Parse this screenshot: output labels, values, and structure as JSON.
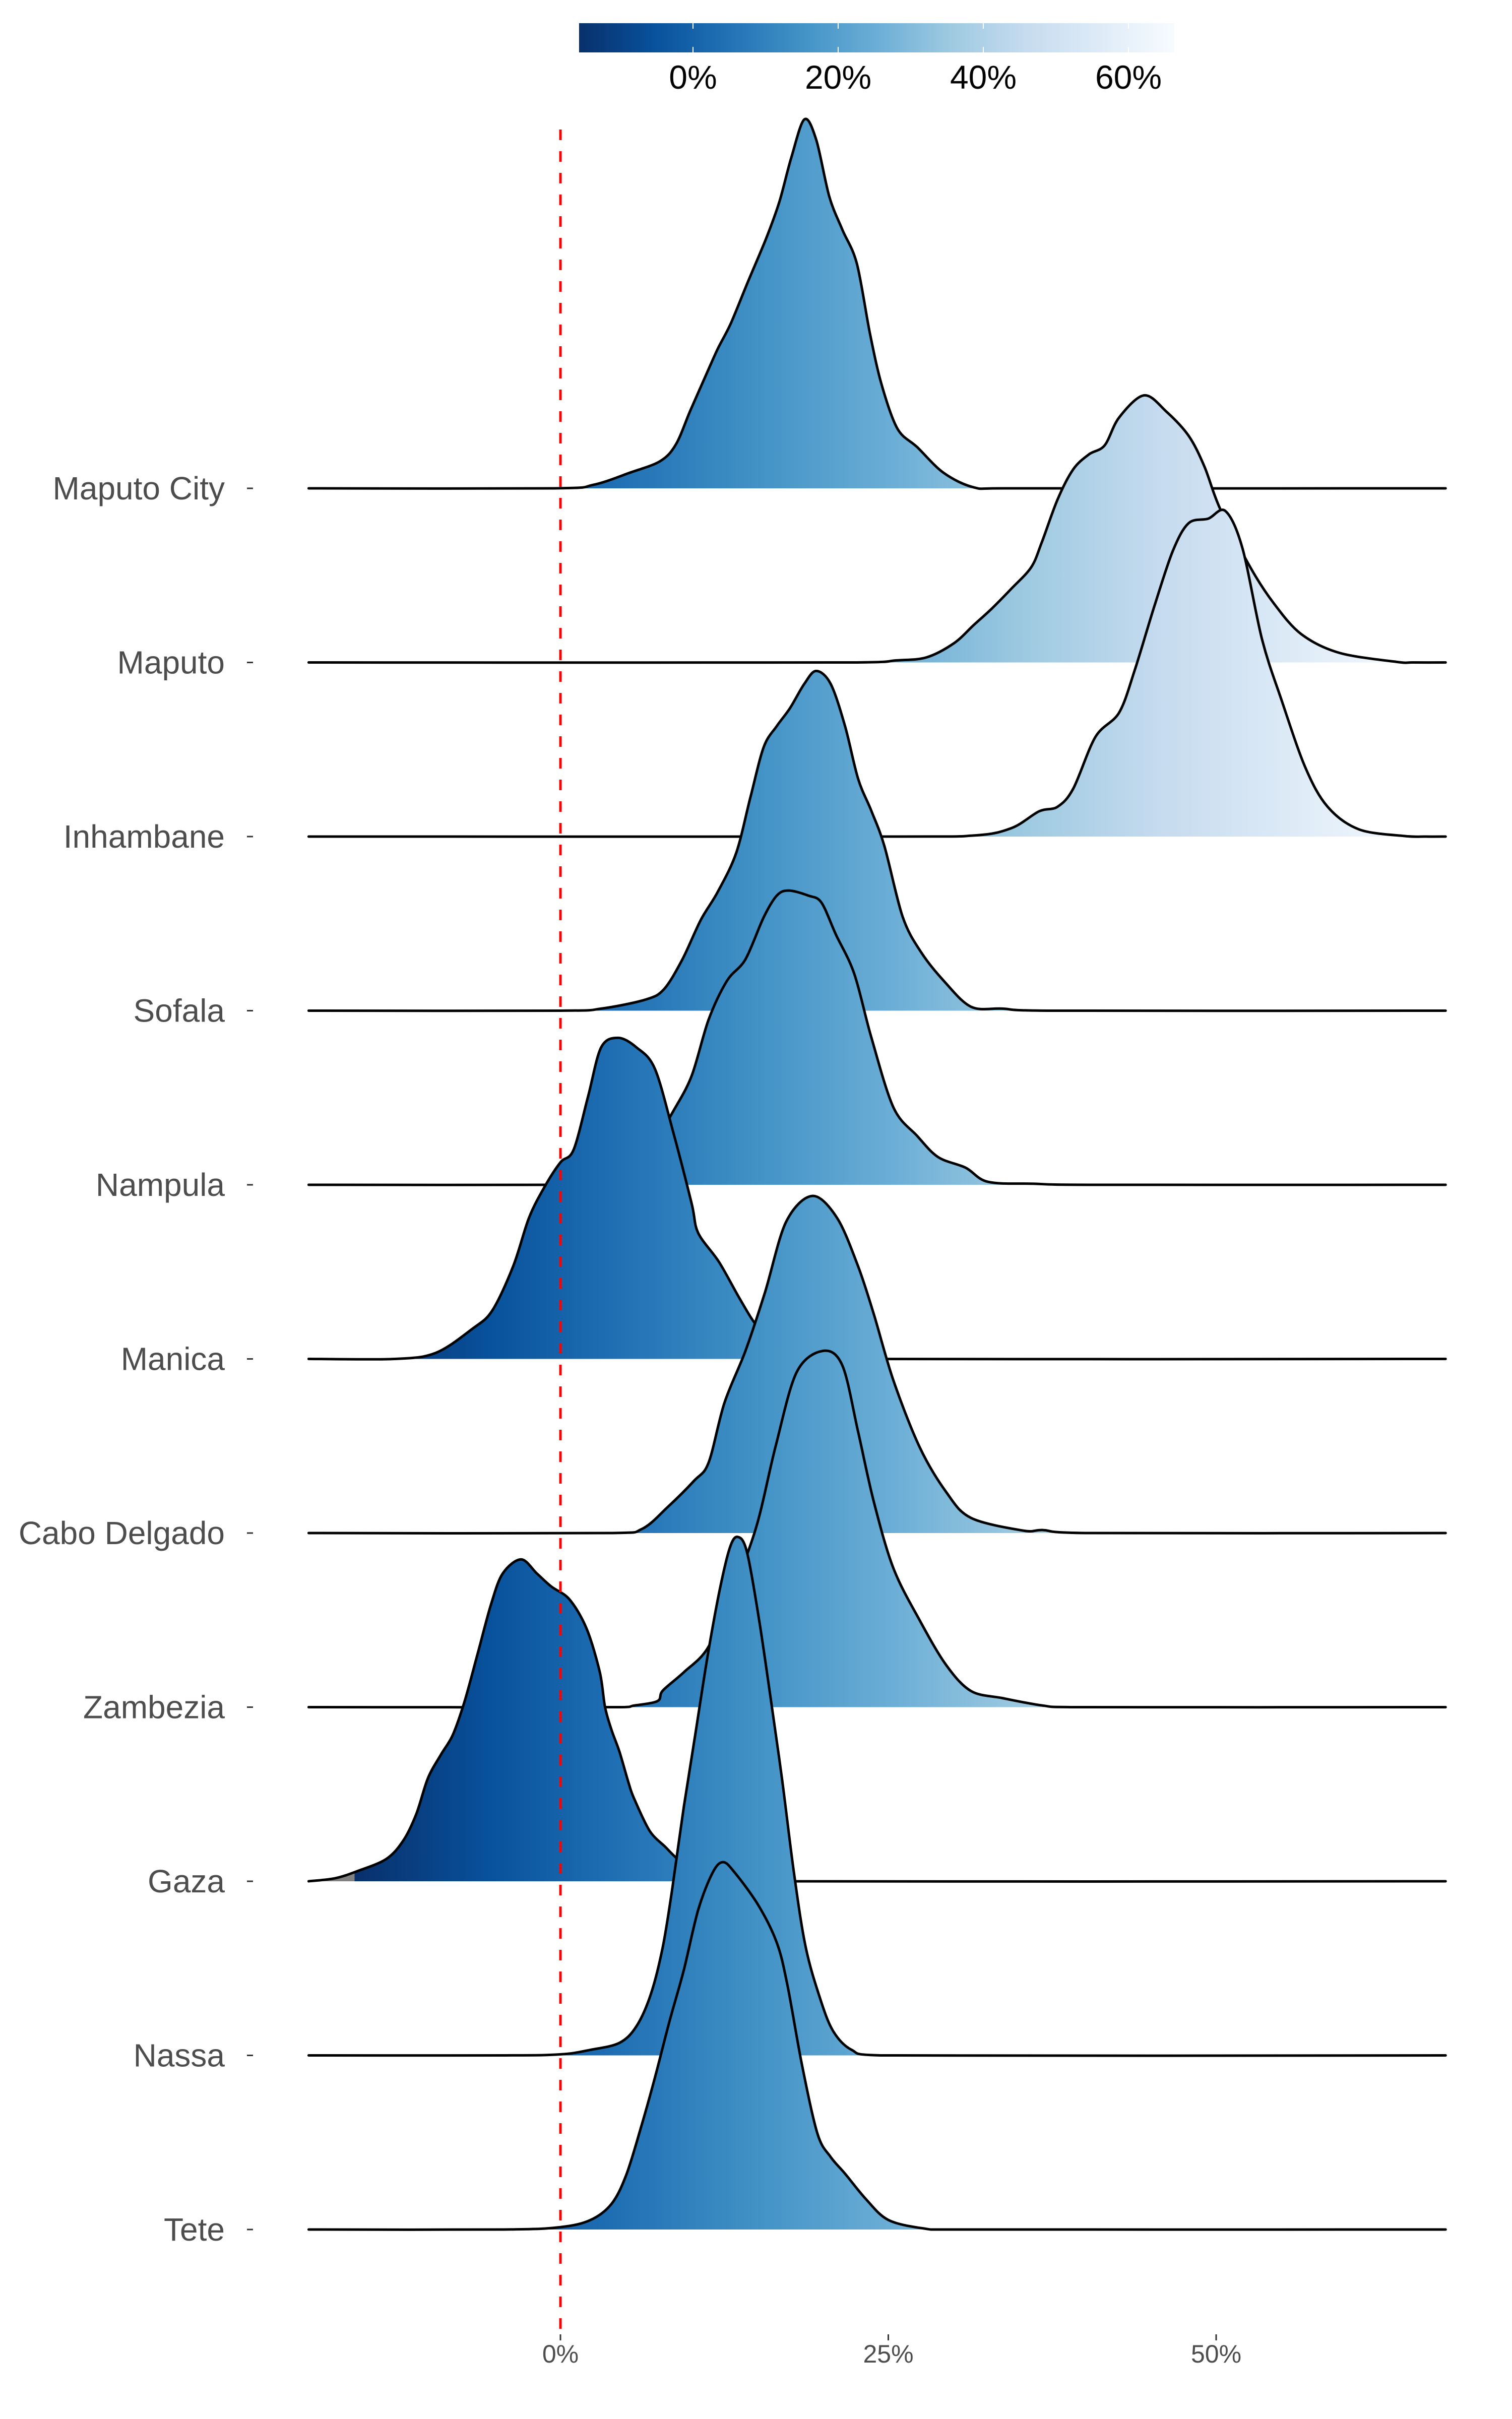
{
  "chart_data": {
    "type": "ridgeline",
    "title": "",
    "xlabel": "",
    "ylabel": "",
    "xlim": [
      -19.2,
      67.5
    ],
    "x_ticks": [
      {
        "value": 0,
        "label": "0%"
      },
      {
        "value": 25,
        "label": "25%"
      },
      {
        "value": 50,
        "label": "50%"
      }
    ],
    "reference_line": {
      "value": 0,
      "style": "dashed",
      "color": "#ff0000"
    },
    "colorbar": {
      "position": "top",
      "range": [
        -15.7,
        66.3
      ],
      "palette": [
        "#08306b",
        "#08519c",
        "#2171b5",
        "#4292c6",
        "#6baed6",
        "#9ecae1",
        "#c6dbef",
        "#deebf7",
        "#f7fbff"
      ],
      "out_of_range_color": "#808080",
      "ticks": [
        {
          "value": 0,
          "label": "0%"
        },
        {
          "value": 20,
          "label": "20%"
        },
        {
          "value": 40,
          "label": "40%"
        },
        {
          "value": 60,
          "label": "60%"
        }
      ]
    },
    "density_units": "ridge height relative to row spacing",
    "series": [
      {
        "name": "Maputo City",
        "points": [
          [
            -19.2,
            0
          ],
          [
            -0.5,
            0
          ],
          [
            2.5,
            0.02
          ],
          [
            5.3,
            0.09
          ],
          [
            7.6,
            0.156
          ],
          [
            8.8,
            0.252
          ],
          [
            9.9,
            0.446
          ],
          [
            11.1,
            0.651
          ],
          [
            12.0,
            0.802
          ],
          [
            13.0,
            0.949
          ],
          [
            14.3,
            1.187
          ],
          [
            15.7,
            1.438
          ],
          [
            16.7,
            1.647
          ],
          [
            17.6,
            1.899
          ],
          [
            18.6,
            2.119
          ],
          [
            19.5,
            2.003
          ],
          [
            20.5,
            1.676
          ],
          [
            21.5,
            1.485
          ],
          [
            22.6,
            1.291
          ],
          [
            23.6,
            0.889
          ],
          [
            24.5,
            0.593
          ],
          [
            25.7,
            0.342
          ],
          [
            27.2,
            0.237
          ],
          [
            29.2,
            0.09
          ],
          [
            31.5,
            0.006
          ],
          [
            34,
            0
          ],
          [
            67.5,
            0
          ]
        ]
      },
      {
        "name": "Maputo",
        "points": [
          [
            -19.2,
            0
          ],
          [
            22.6,
            0
          ],
          [
            25.6,
            0.012
          ],
          [
            27.9,
            0.029
          ],
          [
            30.0,
            0.11
          ],
          [
            31.5,
            0.214
          ],
          [
            32.9,
            0.31
          ],
          [
            34.4,
            0.425
          ],
          [
            35.9,
            0.547
          ],
          [
            36.7,
            0.689
          ],
          [
            37.9,
            0.935
          ],
          [
            39.1,
            1.109
          ],
          [
            40.3,
            1.195
          ],
          [
            41.5,
            1.247
          ],
          [
            42.6,
            1.407
          ],
          [
            44.5,
            1.534
          ],
          [
            46.2,
            1.441
          ],
          [
            47.9,
            1.302
          ],
          [
            49.1,
            1.126
          ],
          [
            50.3,
            0.883
          ],
          [
            52.6,
            0.547
          ],
          [
            54.4,
            0.339
          ],
          [
            56.5,
            0.162
          ],
          [
            59.4,
            0.055
          ],
          [
            63.8,
            0.003
          ],
          [
            65,
            0
          ],
          [
            67.5,
            0
          ]
        ]
      },
      {
        "name": "Inhambane",
        "points": [
          [
            -19.2,
            0
          ],
          [
            24.4,
            0
          ],
          [
            31.5,
            0.006
          ],
          [
            34.4,
            0.049
          ],
          [
            36.5,
            0.145
          ],
          [
            37.9,
            0.171
          ],
          [
            39.1,
            0.275
          ],
          [
            40.8,
            0.573
          ],
          [
            42.6,
            0.712
          ],
          [
            43.8,
            0.958
          ],
          [
            45.3,
            1.326
          ],
          [
            46.7,
            1.641
          ],
          [
            47.9,
            1.8
          ],
          [
            49.4,
            1.826
          ],
          [
            50.7,
            1.87
          ],
          [
            52.0,
            1.658
          ],
          [
            53.5,
            1.132
          ],
          [
            55.0,
            0.781
          ],
          [
            56.8,
            0.397
          ],
          [
            58.5,
            0.171
          ],
          [
            60.9,
            0.041
          ],
          [
            64.4,
            0.003
          ],
          [
            66,
            0
          ],
          [
            67.5,
            0
          ]
        ]
      },
      {
        "name": "Sofala",
        "points": [
          [
            -19.2,
            0
          ],
          [
            0,
            0
          ],
          [
            3.1,
            0.012
          ],
          [
            6.5,
            0.064
          ],
          [
            7.9,
            0.124
          ],
          [
            9.3,
            0.295
          ],
          [
            10.7,
            0.521
          ],
          [
            12.0,
            0.683
          ],
          [
            13.4,
            0.906
          ],
          [
            14.5,
            1.23
          ],
          [
            15.5,
            1.514
          ],
          [
            16.5,
            1.635
          ],
          [
            17.5,
            1.737
          ],
          [
            18.6,
            1.878
          ],
          [
            19.5,
            1.951
          ],
          [
            20.6,
            1.878
          ],
          [
            21.7,
            1.635
          ],
          [
            22.7,
            1.331
          ],
          [
            23.7,
            1.149
          ],
          [
            24.7,
            0.946
          ],
          [
            26.1,
            0.538
          ],
          [
            27.5,
            0.336
          ],
          [
            29.2,
            0.174
          ],
          [
            31.3,
            0.023
          ],
          [
            33.7,
            0.012
          ],
          [
            37.1,
            0
          ],
          [
            67.5,
            0
          ]
        ]
      },
      {
        "name": "Nampula",
        "points": [
          [
            -19.2,
            0
          ],
          [
            0,
            0
          ],
          [
            2,
            0.015
          ],
          [
            4,
            0.058
          ],
          [
            6,
            0.16
          ],
          [
            7.5,
            0.29
          ],
          [
            8.6,
            0.423
          ],
          [
            10,
            0.625
          ],
          [
            11.3,
            0.949
          ],
          [
            12.7,
            1.172
          ],
          [
            14.1,
            1.294
          ],
          [
            15.5,
            1.537
          ],
          [
            16.5,
            1.661
          ],
          [
            17.4,
            1.69
          ],
          [
            18.9,
            1.661
          ],
          [
            19.9,
            1.621
          ],
          [
            21.0,
            1.438
          ],
          [
            22.4,
            1.213
          ],
          [
            23.7,
            0.848
          ],
          [
            25.4,
            0.443
          ],
          [
            27.2,
            0.281
          ],
          [
            28.8,
            0.159
          ],
          [
            30.9,
            0.098
          ],
          [
            32.6,
            0.017
          ],
          [
            36.1,
            0.006
          ],
          [
            41,
            0
          ],
          [
            67.5,
            0
          ]
        ]
      },
      {
        "name": "Manica",
        "points": [
          [
            -19.2,
            0
          ],
          [
            -12.6,
            0
          ],
          [
            -9.5,
            0.035
          ],
          [
            -6.7,
            0.174
          ],
          [
            -5.2,
            0.278
          ],
          [
            -3.6,
            0.533
          ],
          [
            -2.4,
            0.81
          ],
          [
            -1.2,
            0.99
          ],
          [
            0,
            1.129
          ],
          [
            1.0,
            1.201
          ],
          [
            2.1,
            1.505
          ],
          [
            3.1,
            1.789
          ],
          [
            4.4,
            1.844
          ],
          [
            5.8,
            1.789
          ],
          [
            7.2,
            1.667
          ],
          [
            8.6,
            1.302
          ],
          [
            10,
            0.894
          ],
          [
            10.5,
            0.724
          ],
          [
            12.1,
            0.556
          ],
          [
            13.7,
            0.342
          ],
          [
            15,
            0.188
          ],
          [
            16.5,
            0.09
          ],
          [
            18,
            0.023
          ],
          [
            20,
            0
          ],
          [
            67.5,
            0
          ]
        ]
      },
      {
        "name": "Cabo Delgado",
        "points": [
          [
            -19.2,
            0
          ],
          [
            3.8,
            0
          ],
          [
            6.2,
            0.023
          ],
          [
            8.2,
            0.151
          ],
          [
            10.2,
            0.301
          ],
          [
            11.3,
            0.405
          ],
          [
            12.5,
            0.747
          ],
          [
            14.1,
            1.045
          ],
          [
            15.6,
            1.383
          ],
          [
            17.2,
            1.786
          ],
          [
            19.2,
            1.936
          ],
          [
            21.1,
            1.809
          ],
          [
            22.7,
            1.531
          ],
          [
            23.9,
            1.256
          ],
          [
            25.4,
            0.874
          ],
          [
            27.4,
            0.492
          ],
          [
            29.4,
            0.237
          ],
          [
            31.3,
            0.087
          ],
          [
            35.3,
            0.014
          ],
          [
            36.8,
            0.017
          ],
          [
            40,
            0
          ],
          [
            67.5,
            0
          ]
        ]
      },
      {
        "name": "Zambezia",
        "points": [
          [
            -19.2,
            0
          ],
          [
            4.7,
            0
          ],
          [
            5.6,
            0.009
          ],
          [
            7.4,
            0.035
          ],
          [
            7.8,
            0.095
          ],
          [
            9.4,
            0.2
          ],
          [
            11.2,
            0.336
          ],
          [
            12.9,
            0.62
          ],
          [
            14.9,
            1.027
          ],
          [
            16.4,
            1.496
          ],
          [
            18,
            1.922
          ],
          [
            20,
            2.046
          ],
          [
            21.5,
            1.962
          ],
          [
            22.7,
            1.58
          ],
          [
            23.9,
            1.178
          ],
          [
            25.4,
            0.796
          ],
          [
            27.4,
            0.498
          ],
          [
            29.4,
            0.243
          ],
          [
            31.3,
            0.093
          ],
          [
            33.7,
            0.052
          ],
          [
            36.8,
            0.009
          ],
          [
            39.2,
            0
          ],
          [
            67.5,
            0
          ]
        ]
      },
      {
        "name": "Gaza",
        "points": [
          [
            -19.2,
            0
          ],
          [
            -17.2,
            0.017
          ],
          [
            -15.5,
            0.058
          ],
          [
            -13.3,
            0.127
          ],
          [
            -12.0,
            0.232
          ],
          [
            -11.0,
            0.385
          ],
          [
            -10.1,
            0.593
          ],
          [
            -9.1,
            0.729
          ],
          [
            -8.2,
            0.842
          ],
          [
            -7.3,
            1.036
          ],
          [
            -6.3,
            1.311
          ],
          [
            -5.3,
            1.589
          ],
          [
            -4.4,
            1.768
          ],
          [
            -3.0,
            1.849
          ],
          [
            -1.8,
            1.768
          ],
          [
            -0.7,
            1.693
          ],
          [
            0.7,
            1.618
          ],
          [
            2.0,
            1.45
          ],
          [
            3.0,
            1.201
          ],
          [
            3.4,
            1.0
          ],
          [
            3.9,
            0.868
          ],
          [
            4.5,
            0.744
          ],
          [
            5.2,
            0.564
          ],
          [
            5.6,
            0.478
          ],
          [
            6.8,
            0.29
          ],
          [
            8.0,
            0.197
          ],
          [
            8.9,
            0.13
          ],
          [
            10,
            0.07
          ],
          [
            11.5,
            0.025
          ],
          [
            13,
            0
          ],
          [
            67.5,
            0
          ]
        ]
      },
      {
        "name": "Nassa",
        "points": [
          [
            -19.2,
            0
          ],
          [
            -4.3,
            0
          ],
          [
            0,
            0.006
          ],
          [
            2.3,
            0.032
          ],
          [
            4.5,
            0.072
          ],
          [
            5.8,
            0.168
          ],
          [
            6.9,
            0.353
          ],
          [
            7.8,
            0.622
          ],
          [
            8.5,
            0.944
          ],
          [
            9.4,
            1.424
          ],
          [
            10.3,
            1.852
          ],
          [
            11.2,
            2.284
          ],
          [
            12.1,
            2.657
          ],
          [
            12.9,
            2.912
          ],
          [
            13.5,
            2.978
          ],
          [
            14.2,
            2.897
          ],
          [
            15.1,
            2.524
          ],
          [
            16.0,
            2.067
          ],
          [
            16.9,
            1.586
          ],
          [
            17.8,
            1.051
          ],
          [
            18.7,
            0.622
          ],
          [
            19.8,
            0.327
          ],
          [
            20.8,
            0.139
          ],
          [
            22.2,
            0.032
          ],
          [
            24.4,
            0
          ],
          [
            67.5,
            0
          ]
        ]
      },
      {
        "name": "Tete",
        "points": [
          [
            -19.2,
            0
          ],
          [
            -4.3,
            0
          ],
          [
            0,
            0.014
          ],
          [
            2.3,
            0.055
          ],
          [
            3.9,
            0.148
          ],
          [
            5.0,
            0.31
          ],
          [
            6.1,
            0.576
          ],
          [
            7.2,
            0.871
          ],
          [
            8.3,
            1.192
          ],
          [
            9.4,
            1.488
          ],
          [
            10.5,
            1.835
          ],
          [
            11.6,
            2.049
          ],
          [
            12.4,
            2.11
          ],
          [
            13.3,
            2.049
          ],
          [
            15.1,
            1.861
          ],
          [
            16.5,
            1.647
          ],
          [
            17.3,
            1.407
          ],
          [
            18.4,
            0.952
          ],
          [
            19.6,
            0.55
          ],
          [
            20.6,
            0.417
          ],
          [
            21.7,
            0.321
          ],
          [
            23.3,
            0.174
          ],
          [
            25.0,
            0.055
          ],
          [
            27.7,
            0.006
          ],
          [
            30,
            0
          ],
          [
            67.5,
            0
          ]
        ]
      }
    ]
  }
}
